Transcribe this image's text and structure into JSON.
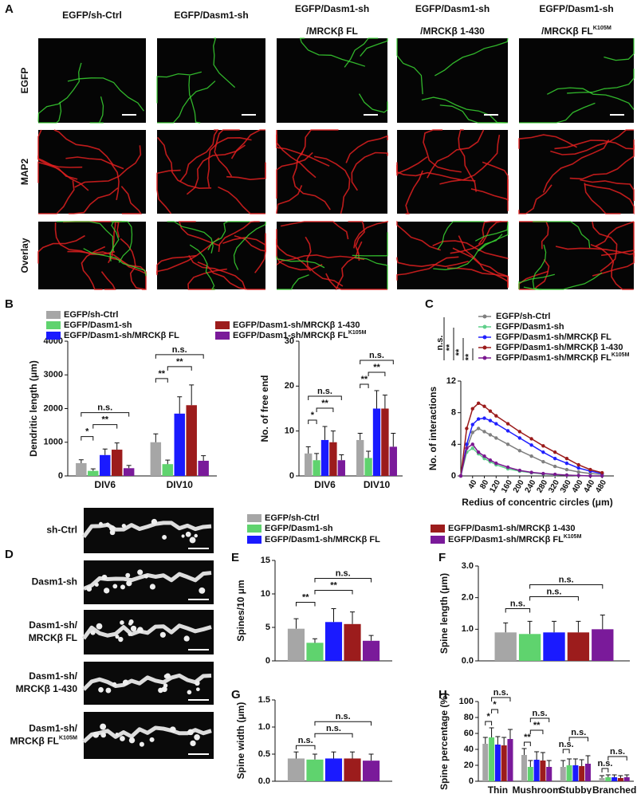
{
  "figure": {
    "panel_labels": [
      "A",
      "B",
      "C",
      "D",
      "E",
      "F",
      "G",
      "H"
    ]
  },
  "panel_a": {
    "columns": [
      {
        "line1": "EGFP/sh-Ctrl"
      },
      {
        "line1": "EGFP/Dasm1-sh"
      },
      {
        "line1": "EGFP/Dasm1-sh",
        "line2": "/MRCKβ FL"
      },
      {
        "line1": "EGFP/Dasm1-sh",
        "line2": "/MRCKβ 1-430"
      },
      {
        "line1": "EGFP/Dasm1-sh",
        "line2": "/MRCKβ FL",
        "sup": "K105M"
      }
    ],
    "rows": [
      "EGFP",
      "MAP2",
      "Overlay"
    ]
  },
  "panel_d": {
    "rows": [
      {
        "line1": "sh-Ctrl"
      },
      {
        "line1": "Dasm1-sh"
      },
      {
        "line1": "Dasm1-sh/",
        "line2": "MRCKβ FL"
      },
      {
        "line1": "Dasm1-sh/",
        "line2": "MRCKβ 1-430"
      },
      {
        "line1": "Dasm1-sh/",
        "line2": "MRCKβ FL",
        "sup": "K105M"
      }
    ]
  },
  "chart_data": [
    {
      "type": "bar",
      "ylabel": "Dendritic length (μm)",
      "categories": [
        "DIV6",
        "DIV10"
      ],
      "ylim": [
        0,
        4000
      ],
      "yticks": [
        0,
        1000,
        2000,
        3000,
        4000
      ],
      "grid": false,
      "legend": true,
      "series": [
        {
          "name": "EGFP/sh-Ctrl",
          "color": "#a6a6a6",
          "values": [
            380,
            1000
          ],
          "errors": [
            100,
            250
          ]
        },
        {
          "name": "EGFP/Dasm1-sh",
          "color": "#5fd36e",
          "values": [
            150,
            350
          ],
          "errors": [
            60,
            120
          ]
        },
        {
          "name": "EGFP/Dasm1-sh/MRCKβ FL",
          "color": "#1a1aff",
          "values": [
            620,
            1850
          ],
          "errors": [
            180,
            500
          ]
        },
        {
          "name": "EGFP/Dasm1-sh/MRCKβ 1-430",
          "color": "#9c1c1c",
          "values": [
            780,
            2100
          ],
          "errors": [
            200,
            600
          ]
        },
        {
          "name": "EGFP/Dasm1-sh/MRCKβ FL",
          "sup": "K105M",
          "color": "#7a1a9a",
          "values": [
            230,
            450
          ],
          "errors": [
            80,
            150
          ]
        }
      ],
      "annotations": [
        {
          "label": "*",
          "category": 0,
          "from": 0,
          "to": [
            1
          ]
        },
        {
          "label": "**",
          "category": 0,
          "from": 1,
          "to": [
            2,
            3
          ]
        },
        {
          "label": "n.s.",
          "category": 0,
          "from": 0,
          "to": [
            4
          ]
        },
        {
          "label": "**",
          "category": 1,
          "from": 0,
          "to": [
            1
          ]
        },
        {
          "label": "**",
          "category": 1,
          "from": 1,
          "to": [
            2,
            3
          ]
        },
        {
          "label": "n.s.",
          "category": 1,
          "from": 0,
          "to": [
            4
          ]
        }
      ]
    },
    {
      "type": "bar",
      "ylabel": "No. of free end",
      "categories": [
        "DIV6",
        "DIV10"
      ],
      "ylim": [
        0,
        30
      ],
      "yticks": [
        0,
        10,
        20,
        30
      ],
      "grid": false,
      "series": [
        {
          "color": "#a6a6a6",
          "values": [
            5,
            8
          ],
          "errors": [
            1.5,
            1.5
          ]
        },
        {
          "color": "#5fd36e",
          "values": [
            3.5,
            4
          ],
          "errors": [
            1.5,
            1.5
          ]
        },
        {
          "color": "#1a1aff",
          "values": [
            8,
            15
          ],
          "errors": [
            3,
            4
          ]
        },
        {
          "color": "#9c1c1c",
          "values": [
            7.5,
            15
          ],
          "errors": [
            2.5,
            3
          ]
        },
        {
          "color": "#7a1a9a",
          "values": [
            3.5,
            6.5
          ],
          "errors": [
            1.2,
            3
          ]
        }
      ],
      "annotations": [
        {
          "label": "*",
          "category": 0,
          "from": 0,
          "to": [
            1
          ]
        },
        {
          "label": "**",
          "category": 0,
          "from": 1,
          "to": [
            2,
            3
          ]
        },
        {
          "label": "n.s.",
          "category": 0,
          "from": 0,
          "to": [
            4
          ]
        },
        {
          "label": "**",
          "category": 1,
          "from": 0,
          "to": [
            1
          ]
        },
        {
          "label": "**",
          "category": 1,
          "from": 1,
          "to": [
            2,
            3
          ]
        },
        {
          "label": "n.s.",
          "category": 1,
          "from": 0,
          "to": [
            4
          ]
        }
      ]
    },
    {
      "type": "line",
      "xlabel": "Redius of concentric circles (μm)",
      "ylabel": "No. of interactions",
      "x": [
        0,
        20,
        40,
        60,
        80,
        100,
        120,
        160,
        200,
        240,
        280,
        320,
        360,
        400,
        440,
        480
      ],
      "xlim": [
        0,
        520
      ],
      "xticks": [
        40,
        80,
        120,
        160,
        200,
        240,
        280,
        320,
        360,
        400,
        440,
        480
      ],
      "ylim": [
        0,
        12
      ],
      "yticks": [
        0,
        4,
        8,
        12
      ],
      "grid": false,
      "legend": true,
      "annotations": [
        "n.s.",
        "**",
        "**",
        "**"
      ],
      "series": [
        {
          "name": "EGFP/sh-Ctrl",
          "color": "#7f7f7f",
          "values": [
            0,
            3.5,
            5.5,
            6,
            5.6,
            5.2,
            4.8,
            4,
            3.2,
            2.5,
            1.8,
            1.2,
            0.8,
            0.5,
            0.3,
            0.2
          ]
        },
        {
          "name": "EGFP/Dasm1-sh",
          "color": "#5fcf8a",
          "values": [
            0,
            3,
            3.5,
            2.8,
            2.2,
            1.8,
            1.4,
            0.9,
            0.6,
            0.4,
            0.25,
            0.15,
            0.1,
            0.05,
            0,
            0
          ]
        },
        {
          "name": "EGFP/Dasm1-sh/MRCKβ FL",
          "color": "#2020ff",
          "values": [
            0,
            4,
            6.5,
            7.2,
            7.3,
            7,
            6.6,
            5.7,
            4.8,
            3.9,
            3,
            2.2,
            1.6,
            1,
            0.6,
            0.3
          ]
        },
        {
          "name": "EGFP/Dasm1-sh/MRCKβ 1-430",
          "color": "#9b1b1b",
          "values": [
            0,
            6,
            8.5,
            9.2,
            8.8,
            8.2,
            7.6,
            6.6,
            5.6,
            4.7,
            3.8,
            3,
            2.2,
            1.4,
            0.8,
            0.4
          ]
        },
        {
          "name": "EGFP/Dasm1-sh/MRCKβ FL",
          "sup": "K105M",
          "color": "#7a1890",
          "values": [
            0,
            3.5,
            4,
            3,
            2.5,
            2,
            1.6,
            1.1,
            0.7,
            0.45,
            0.3,
            0.2,
            0.1,
            0.05,
            0,
            0
          ]
        }
      ]
    },
    {
      "type": "bar",
      "ylabel": "Spines/10 μm",
      "categories": [
        null
      ],
      "ylim": [
        0,
        15
      ],
      "yticks": [
        0,
        5,
        10,
        15
      ],
      "grid": false,
      "legend": true,
      "series": [
        {
          "name": "EGFP/sh-Ctrl",
          "color": "#a6a6a6",
          "values": [
            4.8
          ],
          "errors": [
            1.5
          ]
        },
        {
          "name": "EGFP/Dasm1-sh",
          "color": "#5fd36e",
          "values": [
            2.7
          ],
          "errors": [
            0.6
          ]
        },
        {
          "name": "EGFP/Dasm1-sh/MRCKβ FL",
          "color": "#1a1aff",
          "values": [
            5.8
          ],
          "errors": [
            2
          ]
        },
        {
          "name": "EGFP/Dasm1-sh/MRCKβ 1-430",
          "color": "#9c1c1c",
          "values": [
            5.5
          ],
          "errors": [
            1.8
          ]
        },
        {
          "name": "EGFP/Dasm1-sh/MRCKβ FL",
          "sup": "K105M",
          "color": "#7a1a9a",
          "values": [
            3.0
          ],
          "errors": [
            0.8
          ]
        }
      ],
      "annotations": [
        {
          "label": "**",
          "category": 0,
          "from": 0,
          "to": [
            1
          ]
        },
        {
          "label": "**",
          "category": 0,
          "from": 1,
          "to": [
            2,
            3
          ]
        },
        {
          "label": "n.s.",
          "category": 0,
          "from": 1,
          "to": [
            4
          ]
        }
      ]
    },
    {
      "type": "bar",
      "ylabel": "Spine length (μm)",
      "categories": [
        null
      ],
      "ylim": [
        0,
        3
      ],
      "yticks": [
        {
          "value": 0,
          "label": "0.0"
        },
        {
          "value": 1,
          "label": "1.0"
        },
        {
          "value": 2,
          "label": "2.0"
        },
        {
          "value": 3,
          "label": "3.0"
        }
      ],
      "grid": false,
      "series": [
        {
          "color": "#a6a6a6",
          "values": [
            0.9
          ],
          "errors": [
            0.3
          ]
        },
        {
          "color": "#5fd36e",
          "values": [
            0.85
          ],
          "errors": [
            0.4
          ]
        },
        {
          "color": "#1a1aff",
          "values": [
            0.9
          ],
          "errors": [
            0.35
          ]
        },
        {
          "color": "#9c1c1c",
          "values": [
            0.9
          ],
          "errors": [
            0.35
          ]
        },
        {
          "color": "#7a1a9a",
          "values": [
            1.0
          ],
          "errors": [
            0.45
          ]
        }
      ],
      "annotations": [
        {
          "label": "n.s.",
          "category": 0,
          "from": 0,
          "to": [
            1
          ]
        },
        {
          "label": "n.s.",
          "category": 0,
          "from": 1,
          "to": [
            2,
            3
          ]
        },
        {
          "label": "n.s.",
          "category": 0,
          "from": 1,
          "to": [
            4
          ]
        }
      ]
    },
    {
      "type": "bar",
      "ylabel": "Spine  width (μm)",
      "categories": [
        null
      ],
      "ylim": [
        0,
        1.5
      ],
      "yticks": [
        {
          "value": 0,
          "label": "0.0"
        },
        0.5,
        {
          "value": 1,
          "label": "1.0"
        },
        1.5
      ],
      "grid": false,
      "series": [
        {
          "color": "#a6a6a6",
          "values": [
            0.42
          ],
          "errors": [
            0.12
          ]
        },
        {
          "color": "#5fd36e",
          "values": [
            0.4
          ],
          "errors": [
            0.1
          ]
        },
        {
          "color": "#1a1aff",
          "values": [
            0.42
          ],
          "errors": [
            0.12
          ]
        },
        {
          "color": "#9c1c1c",
          "values": [
            0.42
          ],
          "errors": [
            0.12
          ]
        },
        {
          "color": "#7a1a9a",
          "values": [
            0.38
          ],
          "errors": [
            0.12
          ]
        }
      ],
      "annotations": [
        {
          "label": "n.s.",
          "category": 0,
          "from": 0,
          "to": [
            1
          ]
        },
        {
          "label": "n.s.",
          "category": 0,
          "from": 1,
          "to": [
            2,
            3
          ]
        },
        {
          "label": "n.s.",
          "category": 0,
          "from": 1,
          "to": [
            4
          ]
        }
      ]
    },
    {
      "type": "bar",
      "ylabel": "Spine percentage (%)",
      "categories": [
        "Thin",
        "Mushroom",
        "Stubby",
        "Branched"
      ],
      "ylim": [
        0,
        100
      ],
      "yticks": [
        0,
        20,
        40,
        60,
        80,
        100
      ],
      "grid": false,
      "series": [
        {
          "color": "#a6a6a6",
          "values": [
            47,
            33,
            18,
            4
          ],
          "errors": [
            8,
            8,
            8,
            3
          ]
        },
        {
          "color": "#5fd36e",
          "values": [
            55,
            18,
            20,
            5
          ],
          "errors": [
            12,
            8,
            8,
            3
          ]
        },
        {
          "color": "#1a1aff",
          "values": [
            46,
            27,
            20,
            5
          ],
          "errors": [
            10,
            10,
            8,
            3
          ]
        },
        {
          "color": "#9c1c1c",
          "values": [
            45,
            26,
            19,
            4
          ],
          "errors": [
            10,
            10,
            8,
            3
          ]
        },
        {
          "color": "#7a1a9a",
          "values": [
            53,
            18,
            22,
            5
          ],
          "errors": [
            12,
            8,
            10,
            3
          ]
        }
      ],
      "annotations": [
        {
          "label": "*",
          "category": 0,
          "from": 0,
          "to": [
            1
          ]
        },
        {
          "label": "*",
          "category": 0,
          "from": 1,
          "to": [
            2
          ]
        },
        {
          "label": "n.s.",
          "category": 0,
          "from": 1,
          "to": [
            4
          ]
        },
        {
          "label": "**",
          "category": 1,
          "from": 0,
          "to": [
            1
          ]
        },
        {
          "label": "**",
          "category": 1,
          "from": 1,
          "to": [
            2,
            3
          ]
        },
        {
          "label": "n.s.",
          "category": 1,
          "from": 1,
          "to": [
            4
          ]
        },
        {
          "label": "n.s.",
          "category": 2,
          "from": 0,
          "to": [
            1
          ]
        },
        {
          "label": "n.s.",
          "category": 2,
          "from": 1,
          "to": [
            2,
            3,
            4
          ]
        },
        {
          "label": "n.s.",
          "category": 3,
          "from": 0,
          "to": [
            1
          ]
        },
        {
          "label": "n.s.",
          "category": 3,
          "from": 1,
          "to": [
            2,
            3,
            4
          ]
        }
      ]
    }
  ]
}
